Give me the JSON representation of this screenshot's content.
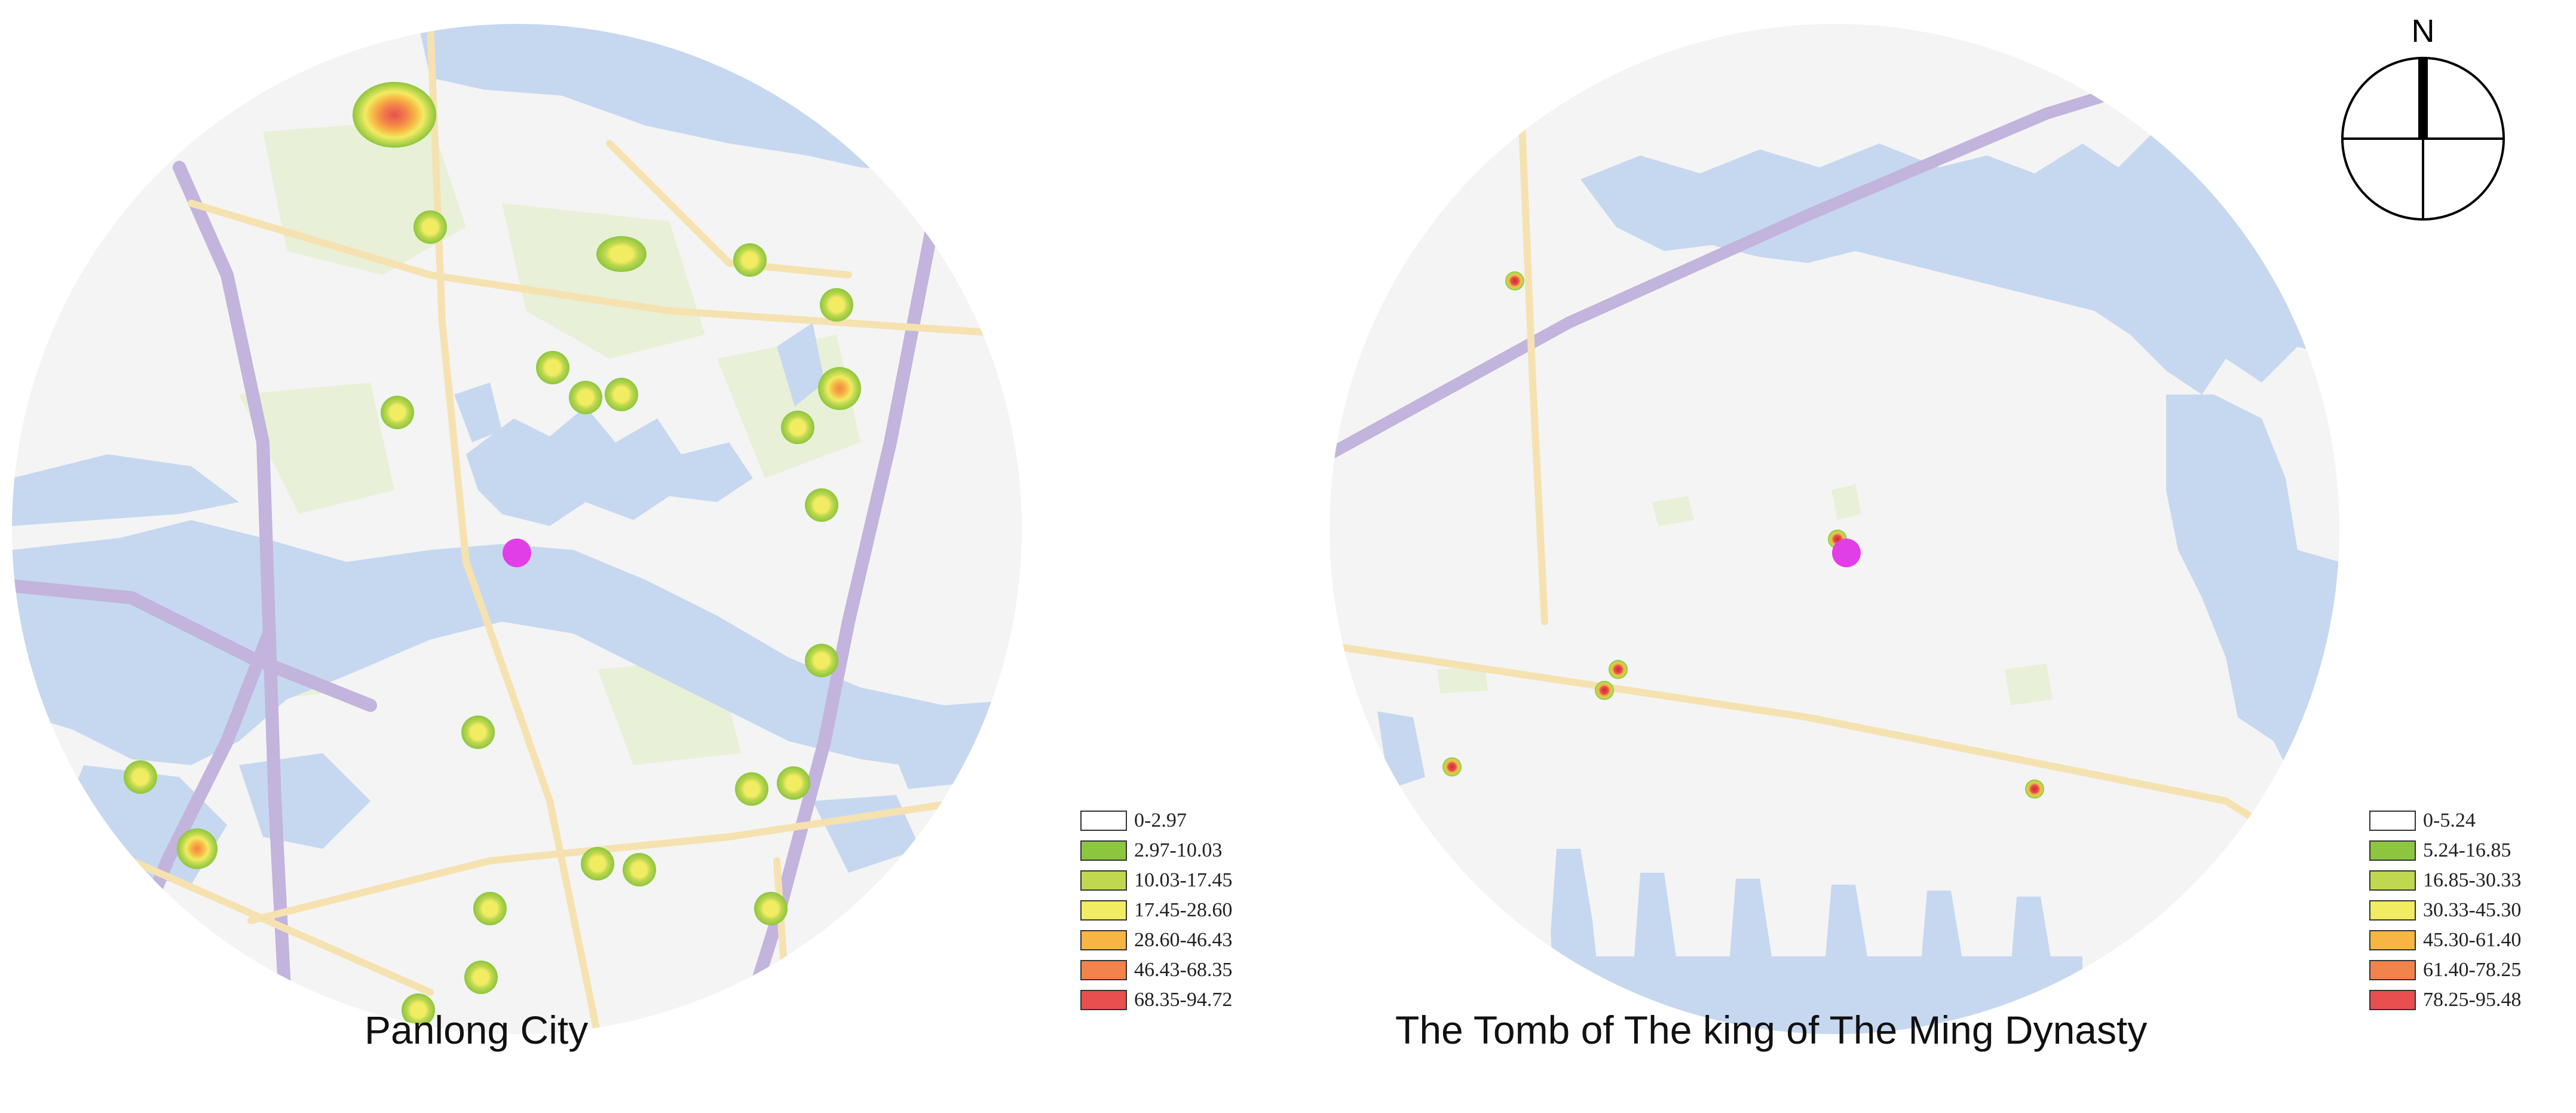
{
  "maps": [
    {
      "caption": "Panlong City",
      "legend": [
        {
          "range": "0-2.97",
          "color": "#ffffff"
        },
        {
          "range": "2.97-10.03",
          "color": "#8cc63e"
        },
        {
          "range": "10.03-17.45",
          "color": "#bfd84f"
        },
        {
          "range": "17.45-28.60",
          "color": "#f1ec62"
        },
        {
          "range": "28.60-46.43",
          "color": "#f7b544"
        },
        {
          "range": "46.43-68.35",
          "color": "#f2834a"
        },
        {
          "range": "68.35-94.72",
          "color": "#e8504f"
        }
      ]
    },
    {
      "caption": "The Tomb of The king of The Ming Dynasty",
      "legend": [
        {
          "range": "0-5.24",
          "color": "#ffffff"
        },
        {
          "range": "5.24-16.85",
          "color": "#8cc63e"
        },
        {
          "range": "16.85-30.33",
          "color": "#bfd84f"
        },
        {
          "range": "30.33-45.30",
          "color": "#f1ec62"
        },
        {
          "range": "45.30-61.40",
          "color": "#f7b544"
        },
        {
          "range": "61.40-78.25",
          "color": "#f2834a"
        },
        {
          "range": "78.25-95.48",
          "color": "#e8504f"
        }
      ]
    }
  ],
  "compass": {
    "label": "N"
  },
  "colors": {
    "water": "#c6d8f0",
    "land": "#f4f4f4",
    "green_area": "#e9f0d8",
    "highway": "#c2b4dc",
    "road": "#f5e2b0",
    "site_marker": "#e23ee8"
  }
}
